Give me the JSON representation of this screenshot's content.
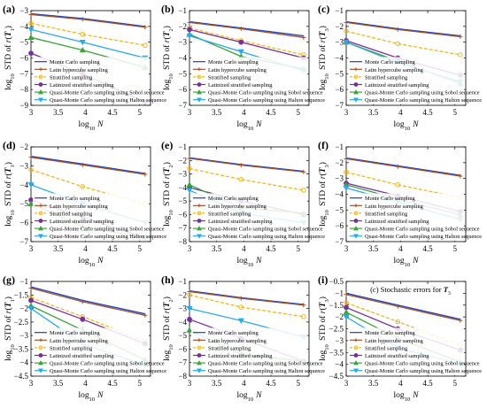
{
  "figure": {
    "xlabel": "log10 N",
    "ylabel_prefix": "log10 STD of r(T",
    "ylabel_suffix": ")",
    "legend_labels": [
      "Monte Carlo sampling",
      "Latin hypercube sampling",
      "Stratified sampling",
      "Latinized stratified sampling",
      "Quasi-Monte Carlo sampling using Sobol sequence",
      "Quasi-Monte Carlo sampling using Halton sequence"
    ],
    "series_colors": [
      "#1f3fbf",
      "#a0522d",
      "#f2b718",
      "#7a2e9a",
      "#3da23a",
      "#29a9e8"
    ],
    "series_styles": [
      "solid",
      "solid",
      "dashed",
      "solid",
      "solid",
      "solid"
    ],
    "series_markers": [
      "none",
      "plus",
      "circle-open",
      "circle",
      "triangle-up",
      "triangle-down"
    ]
  },
  "chart_data": [
    {
      "type": "line",
      "panel_label": "(a)",
      "subscript": "1",
      "xlim": [
        3,
        5.2
      ],
      "ylim": [
        -9,
        -3
      ],
      "xticks": [
        3,
        3.5,
        4,
        4.5,
        5
      ],
      "yticks": [
        -9,
        -8,
        -7,
        -6,
        -5,
        -4,
        -3
      ],
      "x": [
        3,
        3.95,
        5.1
      ],
      "series": [
        {
          "values": [
            -3.2,
            -3.5,
            -4.0
          ]
        },
        {
          "values": [
            -3.25,
            -3.55,
            -4.05
          ]
        },
        {
          "values": [
            -3.8,
            -4.5,
            -5.2
          ]
        },
        {
          "values": [
            -5.7,
            -7.0,
            -8.8
          ]
        },
        {
          "values": [
            -4.7,
            -5.5,
            -6.6
          ]
        },
        {
          "values": [
            -4.2,
            -5.0,
            -6.0
          ]
        }
      ]
    },
    {
      "type": "line",
      "panel_label": "(b)",
      "subscript": "2",
      "xlim": [
        3,
        5.2
      ],
      "ylim": [
        -7,
        -1
      ],
      "xticks": [
        3,
        3.5,
        4,
        4.5,
        5
      ],
      "yticks": [
        -7,
        -6,
        -5,
        -4,
        -3,
        -2,
        -1
      ],
      "x": [
        3,
        3.95,
        5.1
      ],
      "series": [
        {
          "values": [
            -1.7,
            -2.1,
            -2.6
          ]
        },
        {
          "values": [
            -1.75,
            -2.15,
            -2.7
          ]
        },
        {
          "values": [
            -2.1,
            -2.9,
            -3.8
          ]
        },
        {
          "values": [
            -2.2,
            -3.0,
            -4.0
          ]
        },
        {
          "values": [
            -2.5,
            -3.9,
            -4.7
          ]
        },
        {
          "values": [
            -2.6,
            -3.6,
            -4.8
          ]
        }
      ]
    },
    {
      "type": "line",
      "panel_label": "(c)",
      "subscript": "3",
      "xlim": [
        3,
        5.2
      ],
      "ylim": [
        -7,
        -1
      ],
      "xticks": [
        3,
        3.5,
        4,
        4.5,
        5
      ],
      "yticks": [
        -7,
        -6,
        -5,
        -4,
        -3,
        -2,
        -1
      ],
      "x": [
        3,
        3.95,
        5.1
      ],
      "series": [
        {
          "values": [
            -1.7,
            -2.15,
            -2.6
          ]
        },
        {
          "values": [
            -1.75,
            -2.2,
            -2.65
          ]
        },
        {
          "values": [
            -2.3,
            -3.1,
            -3.8
          ]
        },
        {
          "values": [
            -2.9,
            -4.0,
            -5.1
          ]
        },
        {
          "values": [
            -3.0,
            -4.2,
            -5.6
          ]
        },
        {
          "values": [
            -3.0,
            -4.3,
            -5.5
          ]
        }
      ]
    },
    {
      "type": "line",
      "panel_label": "(d)",
      "subscript": "1",
      "xlim": [
        3,
        5.2
      ],
      "ylim": [
        -7,
        -2
      ],
      "xticks": [
        3,
        3.5,
        4,
        4.5,
        5
      ],
      "yticks": [
        -7,
        -6,
        -5,
        -4,
        -3,
        -2
      ],
      "x": [
        3,
        3.95,
        5.1
      ],
      "series": [
        {
          "values": [
            -2.5,
            -2.9,
            -3.4
          ]
        },
        {
          "values": [
            -2.55,
            -2.95,
            -3.45
          ]
        },
        {
          "values": [
            -3.2,
            -4.1,
            -5.0
          ]
        },
        {
          "values": [
            -4.8,
            -5.7,
            -6.8
          ]
        },
        {
          "values": [
            -5.0,
            -6.2,
            -6.8
          ]
        },
        {
          "values": [
            -4.0,
            -5.0,
            -6.0
          ]
        }
      ]
    },
    {
      "type": "line",
      "panel_label": "(e)",
      "subscript": "2",
      "xlim": [
        3,
        5.2
      ],
      "ylim": [
        -8,
        -1
      ],
      "xticks": [
        3,
        3.5,
        4,
        4.5,
        5
      ],
      "yticks": [
        -8,
        -7,
        -6,
        -5,
        -4,
        -3,
        -2,
        -1
      ],
      "x": [
        3,
        3.95,
        5.1
      ],
      "series": [
        {
          "values": [
            -1.8,
            -2.3,
            -2.8
          ]
        },
        {
          "values": [
            -1.85,
            -2.35,
            -2.85
          ]
        },
        {
          "values": [
            -2.6,
            -3.4,
            -4.2
          ]
        },
        {
          "values": [
            -4.0,
            -5.0,
            -6.0
          ]
        },
        {
          "values": [
            -3.8,
            -5.5,
            -5.9
          ]
        },
        {
          "values": [
            -4.2,
            -5.9,
            -6.6
          ]
        }
      ]
    },
    {
      "type": "line",
      "panel_label": "(f)",
      "subscript": "3",
      "xlim": [
        3,
        5.2
      ],
      "ylim": [
        -7,
        -1
      ],
      "xticks": [
        3,
        3.5,
        4,
        4.5,
        5
      ],
      "yticks": [
        -7,
        -6,
        -5,
        -4,
        -3,
        -2,
        -1
      ],
      "x": [
        3,
        3.95,
        5.1
      ],
      "series": [
        {
          "values": [
            -1.7,
            -2.2,
            -2.8
          ]
        },
        {
          "values": [
            -1.75,
            -2.25,
            -2.85
          ]
        },
        {
          "values": [
            -2.6,
            -3.4,
            -4.2
          ]
        },
        {
          "values": [
            -3.3,
            -4.1,
            -5.1
          ]
        },
        {
          "values": [
            -3.4,
            -4.3,
            -5.3
          ]
        },
        {
          "values": [
            -3.6,
            -4.5,
            -5.6
          ]
        }
      ]
    },
    {
      "type": "line",
      "panel_label": "(g)",
      "subscript": "1",
      "xlim": [
        3,
        5.2
      ],
      "ylim": [
        -4.5,
        -1
      ],
      "xticks": [
        3,
        3.5,
        4,
        4.5,
        5
      ],
      "yticks": [
        -4.5,
        -4,
        -3.5,
        -3,
        -2.5,
        -2,
        -1.5,
        -1
      ],
      "x": [
        3,
        3.95,
        5.1
      ],
      "series": [
        {
          "values": [
            -1.2,
            -1.7,
            -2.2
          ]
        },
        {
          "values": [
            -1.25,
            -1.75,
            -2.25
          ]
        },
        {
          "values": [
            -1.6,
            -2.3,
            -3.2
          ]
        },
        {
          "values": [
            -1.7,
            -2.4,
            -3.3
          ]
        },
        {
          "values": [
            -1.9,
            -2.8,
            -3.9
          ]
        },
        {
          "values": [
            -2.0,
            -3.3,
            -4.1
          ]
        }
      ]
    },
    {
      "type": "line",
      "panel_label": "(h)",
      "subscript": "2",
      "xlim": [
        3,
        5.2
      ],
      "ylim": [
        -8,
        -1
      ],
      "xticks": [
        3,
        3.5,
        4,
        4.5,
        5
      ],
      "yticks": [
        -8,
        -7,
        -6,
        -5,
        -4,
        -3,
        -2,
        -1
      ],
      "x": [
        3,
        3.95,
        5.1
      ],
      "series": [
        {
          "values": [
            -1.7,
            -2.2,
            -2.7
          ]
        },
        {
          "values": [
            -1.75,
            -2.25,
            -2.75
          ]
        },
        {
          "values": [
            -2.0,
            -2.9,
            -3.6
          ]
        },
        {
          "values": [
            -3.8,
            -5.2,
            -6.9
          ]
        },
        {
          "values": [
            -4.6,
            -6.4,
            -6.9
          ]
        },
        {
          "values": [
            -3.0,
            -3.9,
            -5.1
          ]
        }
      ]
    },
    {
      "type": "line",
      "panel_label": "(i)",
      "subscript": "3",
      "title": "(c) Stochastic errors for T3",
      "xlim": [
        3,
        5.2
      ],
      "ylim": [
        -4.5,
        -0.5
      ],
      "xticks": [
        3,
        3.5,
        4,
        4.5,
        5
      ],
      "yticks": [
        -4.5,
        -4,
        -3.5,
        -3,
        -2.5,
        -2,
        -1.5,
        -1,
        -0.5
      ],
      "x": [
        3,
        3.95,
        5.1
      ],
      "series": [
        {
          "values": [
            -1.0,
            -1.5,
            -2.1
          ]
        },
        {
          "values": [
            -1.05,
            -1.55,
            -2.15
          ]
        },
        {
          "values": [
            -1.4,
            -2.2,
            -3.2
          ]
        },
        {
          "values": [
            -1.6,
            -2.5,
            -3.4
          ]
        },
        {
          "values": [
            -1.8,
            -2.9,
            -3.9
          ]
        },
        {
          "values": [
            -2.0,
            -3.3,
            -4.0
          ]
        }
      ]
    }
  ]
}
